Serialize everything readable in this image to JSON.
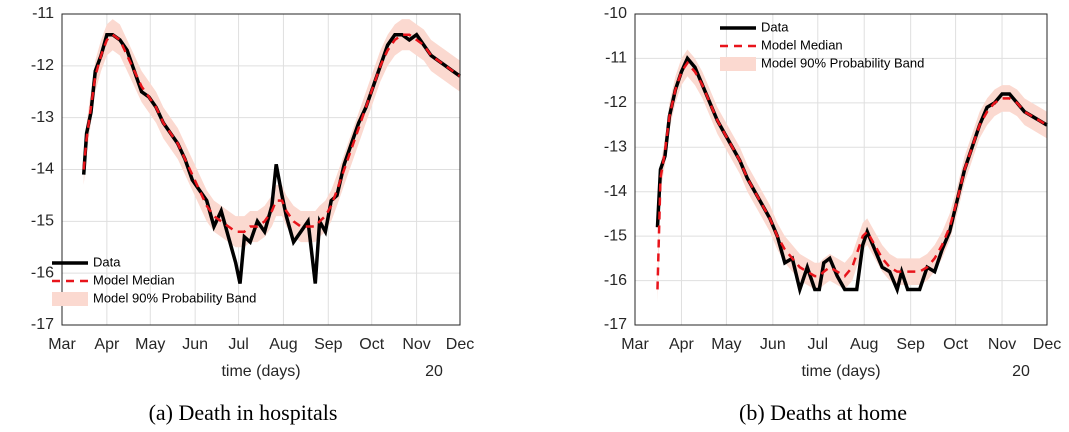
{
  "chart_data": [
    {
      "type": "line",
      "caption": "(a) Death in hospitals",
      "xlabel": "time (days)",
      "x_note": "20",
      "legend": "lower left",
      "grid": true,
      "xlim": [
        0,
        275
      ],
      "ylim": [
        -17,
        -11
      ],
      "xticks": [
        {
          "value": 0,
          "label": "Mar"
        },
        {
          "value": 31,
          "label": "Apr"
        },
        {
          "value": 61,
          "label": "May"
        },
        {
          "value": 92,
          "label": "Jun"
        },
        {
          "value": 122,
          "label": "Jul"
        },
        {
          "value": 153,
          "label": "Aug"
        },
        {
          "value": 184,
          "label": "Sep"
        },
        {
          "value": 214,
          "label": "Oct"
        },
        {
          "value": 245,
          "label": "Nov"
        },
        {
          "value": 275,
          "label": "Dec"
        }
      ],
      "yticks": [
        -17,
        -16,
        -15,
        -14,
        -13,
        -12,
        -11
      ],
      "x": [
        15,
        17,
        20,
        23,
        27,
        31,
        35,
        40,
        45,
        50,
        55,
        60,
        65,
        70,
        75,
        80,
        85,
        90,
        95,
        100,
        105,
        110,
        115,
        120,
        123,
        126,
        130,
        135,
        140,
        145,
        148,
        152,
        155,
        160,
        165,
        170,
        175,
        178,
        182,
        186,
        190,
        195,
        200,
        205,
        210,
        215,
        220,
        225,
        230,
        235,
        240,
        245,
        250,
        255,
        260,
        265,
        270,
        275
      ],
      "band": {
        "name": "Model 90% Probability Band",
        "color": "#fbd9d0",
        "lower": [
          -14.3,
          -13.7,
          -13.1,
          -12.5,
          -12.1,
          -11.8,
          -11.7,
          -11.8,
          -12.1,
          -12.4,
          -12.7,
          -12.9,
          -13.1,
          -13.4,
          -13.6,
          -13.8,
          -14.1,
          -14.4,
          -14.7,
          -15.0,
          -15.2,
          -15.3,
          -15.4,
          -15.5,
          -15.5,
          -15.5,
          -15.4,
          -15.4,
          -15.3,
          -15.1,
          -14.9,
          -14.9,
          -15.1,
          -15.3,
          -15.4,
          -15.4,
          -15.4,
          -15.3,
          -15.2,
          -15.0,
          -14.7,
          -14.3,
          -13.9,
          -13.5,
          -13.1,
          -12.7,
          -12.3,
          -12.0,
          -11.8,
          -11.7,
          -11.7,
          -11.8,
          -11.9,
          -12.1,
          -12.2,
          -12.3,
          -12.4,
          -12.5
        ],
        "upper": [
          -13.7,
          -13.1,
          -12.5,
          -11.9,
          -11.5,
          -11.2,
          -11.1,
          -11.2,
          -11.5,
          -11.8,
          -12.1,
          -12.3,
          -12.5,
          -12.8,
          -13.0,
          -13.2,
          -13.5,
          -13.8,
          -14.1,
          -14.4,
          -14.6,
          -14.7,
          -14.8,
          -14.9,
          -14.9,
          -14.9,
          -14.8,
          -14.8,
          -14.7,
          -14.5,
          -14.3,
          -14.3,
          -14.5,
          -14.7,
          -14.8,
          -14.8,
          -14.8,
          -14.7,
          -14.6,
          -14.4,
          -14.1,
          -13.7,
          -13.3,
          -12.9,
          -12.5,
          -12.1,
          -11.7,
          -11.4,
          -11.2,
          -11.1,
          -11.1,
          -11.2,
          -11.3,
          -11.5,
          -11.6,
          -11.7,
          -11.8,
          -11.9
        ]
      },
      "series": [
        {
          "name": "Data",
          "color": "#000000",
          "dashed": false,
          "values": [
            -14.1,
            -13.3,
            -12.9,
            -12.1,
            -11.8,
            -11.4,
            -11.4,
            -11.5,
            -11.7,
            -12.1,
            -12.5,
            -12.6,
            -12.8,
            -13.1,
            -13.3,
            -13.5,
            -13.8,
            -14.2,
            -14.4,
            -14.6,
            -15.1,
            -14.8,
            -15.3,
            -15.8,
            -16.2,
            -15.3,
            -15.4,
            -15.0,
            -15.2,
            -14.7,
            -13.9,
            -14.5,
            -14.9,
            -15.4,
            -15.2,
            -15.0,
            -16.2,
            -15.0,
            -15.2,
            -14.6,
            -14.5,
            -13.9,
            -13.5,
            -13.1,
            -12.8,
            -12.4,
            -12.0,
            -11.6,
            -11.4,
            -11.4,
            -11.5,
            -11.4,
            -11.6,
            -11.8,
            -11.9,
            -12.0,
            -12.1,
            -12.2
          ]
        },
        {
          "name": "Model Median",
          "color": "#e8141b",
          "dashed": true,
          "values": [
            -14.0,
            -13.4,
            -12.8,
            -12.2,
            -11.8,
            -11.5,
            -11.4,
            -11.5,
            -11.8,
            -12.1,
            -12.4,
            -12.6,
            -12.8,
            -13.1,
            -13.3,
            -13.5,
            -13.8,
            -14.1,
            -14.4,
            -14.7,
            -14.9,
            -15.0,
            -15.1,
            -15.2,
            -15.2,
            -15.2,
            -15.1,
            -15.1,
            -15.0,
            -14.8,
            -14.6,
            -14.6,
            -14.8,
            -15.0,
            -15.1,
            -15.1,
            -15.1,
            -15.0,
            -14.9,
            -14.7,
            -14.4,
            -14.0,
            -13.6,
            -13.2,
            -12.8,
            -12.4,
            -12.0,
            -11.7,
            -11.5,
            -11.4,
            -11.4,
            -11.5,
            -11.6,
            -11.8,
            -11.9,
            -12.0,
            -12.1,
            -12.2
          ]
        }
      ]
    },
    {
      "type": "line",
      "caption": "(b) Deaths at home",
      "xlabel": "time (days)",
      "x_note": "20",
      "legend": "upper left",
      "grid": true,
      "xlim": [
        0,
        275
      ],
      "ylim": [
        -17,
        -10
      ],
      "xticks": [
        {
          "value": 0,
          "label": "Mar"
        },
        {
          "value": 31,
          "label": "Apr"
        },
        {
          "value": 61,
          "label": "May"
        },
        {
          "value": 92,
          "label": "Jun"
        },
        {
          "value": 122,
          "label": "Jul"
        },
        {
          "value": 153,
          "label": "Aug"
        },
        {
          "value": 184,
          "label": "Sep"
        },
        {
          "value": 214,
          "label": "Oct"
        },
        {
          "value": 245,
          "label": "Nov"
        },
        {
          "value": 275,
          "label": "Dec"
        }
      ],
      "yticks": [
        -17,
        -16,
        -15,
        -14,
        -13,
        -12,
        -11,
        -10
      ],
      "x": [
        15,
        17,
        20,
        23,
        27,
        31,
        35,
        40,
        45,
        50,
        55,
        60,
        65,
        70,
        75,
        80,
        85,
        90,
        95,
        100,
        105,
        110,
        115,
        120,
        123,
        126,
        130,
        135,
        140,
        145,
        148,
        152,
        155,
        160,
        165,
        170,
        175,
        178,
        182,
        186,
        190,
        195,
        200,
        205,
        210,
        215,
        220,
        225,
        230,
        235,
        240,
        245,
        250,
        255,
        260,
        265,
        270,
        275
      ],
      "band": {
        "name": "Model 90% Probability Band",
        "color": "#fbd9d0",
        "lower": [
          -16.5,
          -14.0,
          -13.4,
          -12.6,
          -12.0,
          -11.6,
          -11.4,
          -11.6,
          -11.9,
          -12.3,
          -12.7,
          -13.0,
          -13.3,
          -13.6,
          -14.0,
          -14.3,
          -14.6,
          -14.9,
          -15.3,
          -15.6,
          -15.8,
          -16.0,
          -16.1,
          -16.2,
          -16.2,
          -16.1,
          -16.0,
          -16.1,
          -16.2,
          -16.0,
          -15.7,
          -15.3,
          -15.2,
          -15.5,
          -15.8,
          -16.0,
          -16.1,
          -16.1,
          -16.1,
          -16.1,
          -16.1,
          -16.0,
          -15.8,
          -15.5,
          -15.1,
          -14.5,
          -13.8,
          -13.3,
          -12.8,
          -12.5,
          -12.3,
          -12.2,
          -12.2,
          -12.3,
          -12.5,
          -12.6,
          -12.7,
          -12.8
        ],
        "upper": [
          -15.9,
          -13.4,
          -12.8,
          -12.0,
          -11.4,
          -11.0,
          -10.8,
          -11.0,
          -11.3,
          -11.7,
          -12.1,
          -12.4,
          -12.7,
          -13.0,
          -13.4,
          -13.7,
          -14.0,
          -14.3,
          -14.7,
          -15.0,
          -15.2,
          -15.4,
          -15.5,
          -15.6,
          -15.6,
          -15.5,
          -15.4,
          -15.5,
          -15.6,
          -15.4,
          -15.1,
          -14.7,
          -14.6,
          -14.9,
          -15.2,
          -15.4,
          -15.5,
          -15.5,
          -15.5,
          -15.5,
          -15.5,
          -15.4,
          -15.2,
          -14.9,
          -14.5,
          -13.9,
          -13.2,
          -12.7,
          -12.2,
          -11.9,
          -11.7,
          -11.6,
          -11.6,
          -11.7,
          -11.9,
          -12.0,
          -12.1,
          -12.2
        ]
      },
      "series": [
        {
          "name": "Data",
          "color": "#000000",
          "dashed": false,
          "values": [
            -14.8,
            -13.5,
            -13.2,
            -12.3,
            -11.7,
            -11.3,
            -11.0,
            -11.2,
            -11.6,
            -12.0,
            -12.4,
            -12.7,
            -13.0,
            -13.3,
            -13.7,
            -14.0,
            -14.3,
            -14.6,
            -15.0,
            -15.6,
            -15.5,
            -16.2,
            -15.7,
            -16.2,
            -16.2,
            -15.6,
            -15.5,
            -15.9,
            -16.2,
            -16.2,
            -16.2,
            -15.2,
            -14.9,
            -15.3,
            -15.7,
            -15.8,
            -16.2,
            -15.8,
            -16.2,
            -16.2,
            -16.2,
            -15.7,
            -15.8,
            -15.3,
            -14.9,
            -14.2,
            -13.5,
            -13.0,
            -12.5,
            -12.1,
            -12.0,
            -11.8,
            -11.8,
            -12.0,
            -12.2,
            -12.3,
            -12.4,
            -12.5
          ]
        },
        {
          "name": "Model Median",
          "color": "#e8141b",
          "dashed": true,
          "values": [
            -16.2,
            -13.7,
            -13.1,
            -12.3,
            -11.7,
            -11.3,
            -11.1,
            -11.3,
            -11.6,
            -12.0,
            -12.4,
            -12.7,
            -13.0,
            -13.3,
            -13.7,
            -14.0,
            -14.3,
            -14.6,
            -15.0,
            -15.3,
            -15.5,
            -15.7,
            -15.8,
            -15.9,
            -15.9,
            -15.8,
            -15.7,
            -15.8,
            -15.9,
            -15.7,
            -15.4,
            -15.0,
            -14.9,
            -15.2,
            -15.5,
            -15.7,
            -15.8,
            -15.8,
            -15.8,
            -15.8,
            -15.8,
            -15.7,
            -15.5,
            -15.2,
            -14.8,
            -14.2,
            -13.5,
            -13.0,
            -12.5,
            -12.2,
            -12.0,
            -11.9,
            -11.9,
            -12.0,
            -12.2,
            -12.3,
            -12.4,
            -12.5
          ]
        }
      ]
    }
  ]
}
